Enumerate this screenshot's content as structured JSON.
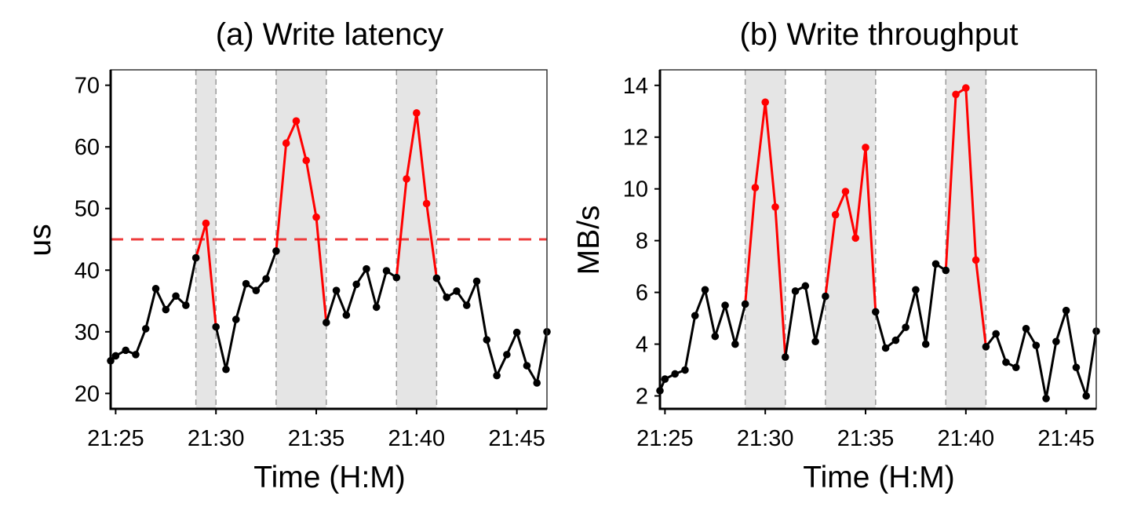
{
  "chart_data": [
    {
      "type": "line",
      "title": "(a) Write latency",
      "xlabel": "Time (H:M)",
      "ylabel": "us",
      "xlim": [
        "21:24:45",
        "21:46:30"
      ],
      "ylim": [
        17.5,
        72.5
      ],
      "xticks": [
        "21:25",
        "21:30",
        "21:35",
        "21:40",
        "21:45"
      ],
      "yticks": [
        20,
        30,
        40,
        50,
        60,
        70
      ],
      "threshold": 45,
      "threshold_color": "#EE3B3B",
      "normal_color": "#000000",
      "anomaly_color": "#FF0000",
      "shaded_color": "#E5E5E5",
      "shaded_regions": [
        [
          "21:29:00",
          "21:30:00"
        ],
        [
          "21:33:00",
          "21:35:30"
        ],
        [
          "21:39:00",
          "21:41:00"
        ]
      ],
      "points": [
        {
          "x": "21:24:45",
          "y": 25.3,
          "anomaly": false
        },
        {
          "x": "21:25:00",
          "y": 26.1,
          "anomaly": false
        },
        {
          "x": "21:25:30",
          "y": 27.0,
          "anomaly": false
        },
        {
          "x": "21:26:00",
          "y": 26.3,
          "anomaly": false
        },
        {
          "x": "21:26:30",
          "y": 30.5,
          "anomaly": false
        },
        {
          "x": "21:27:00",
          "y": 37.0,
          "anomaly": false
        },
        {
          "x": "21:27:30",
          "y": 33.6,
          "anomaly": false
        },
        {
          "x": "21:28:00",
          "y": 35.8,
          "anomaly": false
        },
        {
          "x": "21:28:30",
          "y": 34.3,
          "anomaly": false
        },
        {
          "x": "21:29:00",
          "y": 42.0,
          "anomaly": false
        },
        {
          "x": "21:29:30",
          "y": 47.6,
          "anomaly": true
        },
        {
          "x": "21:30:00",
          "y": 30.8,
          "anomaly": false
        },
        {
          "x": "21:30:30",
          "y": 23.9,
          "anomaly": false
        },
        {
          "x": "21:31:00",
          "y": 32.0,
          "anomaly": false
        },
        {
          "x": "21:31:30",
          "y": 37.8,
          "anomaly": false
        },
        {
          "x": "21:32:00",
          "y": 36.7,
          "anomaly": false
        },
        {
          "x": "21:32:30",
          "y": 38.6,
          "anomaly": false
        },
        {
          "x": "21:33:00",
          "y": 43.1,
          "anomaly": false
        },
        {
          "x": "21:33:30",
          "y": 60.6,
          "anomaly": true
        },
        {
          "x": "21:34:00",
          "y": 64.2,
          "anomaly": true
        },
        {
          "x": "21:34:30",
          "y": 57.8,
          "anomaly": true
        },
        {
          "x": "21:35:00",
          "y": 48.6,
          "anomaly": true
        },
        {
          "x": "21:35:30",
          "y": 31.5,
          "anomaly": false
        },
        {
          "x": "21:36:00",
          "y": 36.7,
          "anomaly": false
        },
        {
          "x": "21:36:30",
          "y": 32.7,
          "anomaly": false
        },
        {
          "x": "21:37:00",
          "y": 37.7,
          "anomaly": false
        },
        {
          "x": "21:37:30",
          "y": 40.2,
          "anomaly": false
        },
        {
          "x": "21:38:00",
          "y": 34.0,
          "anomaly": false
        },
        {
          "x": "21:38:30",
          "y": 39.9,
          "anomaly": false
        },
        {
          "x": "21:39:00",
          "y": 38.8,
          "anomaly": false
        },
        {
          "x": "21:39:30",
          "y": 54.8,
          "anomaly": true
        },
        {
          "x": "21:40:00",
          "y": 65.5,
          "anomaly": true
        },
        {
          "x": "21:40:30",
          "y": 50.8,
          "anomaly": true
        },
        {
          "x": "21:41:00",
          "y": 38.7,
          "anomaly": false
        },
        {
          "x": "21:41:30",
          "y": 35.6,
          "anomaly": false
        },
        {
          "x": "21:42:00",
          "y": 36.6,
          "anomaly": false
        },
        {
          "x": "21:42:30",
          "y": 34.3,
          "anomaly": false
        },
        {
          "x": "21:43:00",
          "y": 38.2,
          "anomaly": false
        },
        {
          "x": "21:43:30",
          "y": 28.7,
          "anomaly": false
        },
        {
          "x": "21:44:00",
          "y": 22.9,
          "anomaly": false
        },
        {
          "x": "21:44:30",
          "y": 26.3,
          "anomaly": false
        },
        {
          "x": "21:45:00",
          "y": 29.9,
          "anomaly": false
        },
        {
          "x": "21:45:30",
          "y": 24.5,
          "anomaly": false
        },
        {
          "x": "21:46:00",
          "y": 21.7,
          "anomaly": false
        },
        {
          "x": "21:46:30",
          "y": 30.0,
          "anomaly": false
        }
      ]
    },
    {
      "type": "line",
      "title": "(b) Write throughput",
      "xlabel": "Time (H:M)",
      "ylabel": "MB/s",
      "xlim": [
        "21:24:45",
        "21:46:30"
      ],
      "ylim": [
        1.5,
        14.6
      ],
      "xticks": [
        "21:25",
        "21:30",
        "21:35",
        "21:40",
        "21:45"
      ],
      "yticks": [
        2,
        4,
        6,
        8,
        10,
        12,
        14
      ],
      "normal_color": "#000000",
      "anomaly_color": "#FF0000",
      "shaded_color": "#E5E5E5",
      "shaded_regions": [
        [
          "21:29:00",
          "21:31:00"
        ],
        [
          "21:33:00",
          "21:35:30"
        ],
        [
          "21:39:00",
          "21:41:00"
        ]
      ],
      "points": [
        {
          "x": "21:24:45",
          "y": 2.2,
          "anomaly": false
        },
        {
          "x": "21:25:00",
          "y": 2.65,
          "anomaly": false
        },
        {
          "x": "21:25:30",
          "y": 2.85,
          "anomaly": false
        },
        {
          "x": "21:26:00",
          "y": 3.0,
          "anomaly": false
        },
        {
          "x": "21:26:30",
          "y": 5.1,
          "anomaly": false
        },
        {
          "x": "21:27:00",
          "y": 6.1,
          "anomaly": false
        },
        {
          "x": "21:27:30",
          "y": 4.3,
          "anomaly": false
        },
        {
          "x": "21:28:00",
          "y": 5.5,
          "anomaly": false
        },
        {
          "x": "21:28:30",
          "y": 4.0,
          "anomaly": false
        },
        {
          "x": "21:29:00",
          "y": 5.55,
          "anomaly": false
        },
        {
          "x": "21:29:30",
          "y": 10.05,
          "anomaly": true
        },
        {
          "x": "21:30:00",
          "y": 13.35,
          "anomaly": true
        },
        {
          "x": "21:30:30",
          "y": 9.3,
          "anomaly": true
        },
        {
          "x": "21:31:00",
          "y": 3.5,
          "anomaly": false
        },
        {
          "x": "21:31:30",
          "y": 6.05,
          "anomaly": false
        },
        {
          "x": "21:32:00",
          "y": 6.25,
          "anomaly": false
        },
        {
          "x": "21:32:30",
          "y": 4.1,
          "anomaly": false
        },
        {
          "x": "21:33:00",
          "y": 5.85,
          "anomaly": false
        },
        {
          "x": "21:33:30",
          "y": 9.0,
          "anomaly": true
        },
        {
          "x": "21:34:00",
          "y": 9.9,
          "anomaly": true
        },
        {
          "x": "21:34:30",
          "y": 8.1,
          "anomaly": true
        },
        {
          "x": "21:35:00",
          "y": 11.6,
          "anomaly": true
        },
        {
          "x": "21:35:30",
          "y": 5.25,
          "anomaly": false
        },
        {
          "x": "21:36:00",
          "y": 3.85,
          "anomaly": false
        },
        {
          "x": "21:36:30",
          "y": 4.15,
          "anomaly": false
        },
        {
          "x": "21:37:00",
          "y": 4.65,
          "anomaly": false
        },
        {
          "x": "21:37:30",
          "y": 6.1,
          "anomaly": false
        },
        {
          "x": "21:38:00",
          "y": 4.0,
          "anomaly": false
        },
        {
          "x": "21:38:30",
          "y": 7.1,
          "anomaly": false
        },
        {
          "x": "21:39:00",
          "y": 6.85,
          "anomaly": false
        },
        {
          "x": "21:39:30",
          "y": 13.65,
          "anomaly": true
        },
        {
          "x": "21:40:00",
          "y": 13.9,
          "anomaly": true
        },
        {
          "x": "21:40:30",
          "y": 7.25,
          "anomaly": true
        },
        {
          "x": "21:41:00",
          "y": 3.9,
          "anomaly": false
        },
        {
          "x": "21:41:30",
          "y": 4.4,
          "anomaly": false
        },
        {
          "x": "21:42:00",
          "y": 3.3,
          "anomaly": false
        },
        {
          "x": "21:42:30",
          "y": 3.1,
          "anomaly": false
        },
        {
          "x": "21:43:00",
          "y": 4.6,
          "anomaly": false
        },
        {
          "x": "21:43:30",
          "y": 3.95,
          "anomaly": false
        },
        {
          "x": "21:44:00",
          "y": 1.9,
          "anomaly": false
        },
        {
          "x": "21:44:30",
          "y": 4.1,
          "anomaly": false
        },
        {
          "x": "21:45:00",
          "y": 5.3,
          "anomaly": false
        },
        {
          "x": "21:45:30",
          "y": 3.1,
          "anomaly": false
        },
        {
          "x": "21:46:00",
          "y": 2.0,
          "anomaly": false
        },
        {
          "x": "21:46:30",
          "y": 4.5,
          "anomaly": false
        }
      ]
    }
  ]
}
